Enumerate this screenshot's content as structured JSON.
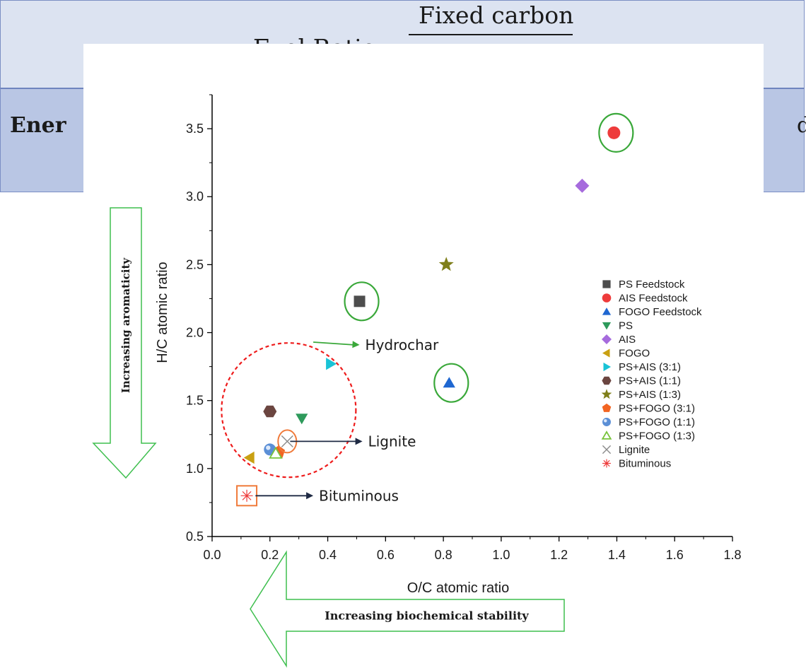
{
  "background": {
    "formula_lhs": "Fuel Ratio =",
    "formula_numerator": "Fixed carbon",
    "row2_left": "Ener",
    "row2_right": "d"
  },
  "chart_data": {
    "type": "scatter",
    "xlabel": "O/C atomic ratio",
    "ylabel": "H/C atomic ratio",
    "xlim": [
      0,
      1.8
    ],
    "ylim": [
      0.5,
      3.75
    ],
    "xticks": [
      "0.0",
      "0.2",
      "0.4",
      "0.6",
      "0.8",
      "1.0",
      "1.2",
      "1.4",
      "1.6",
      "1.8"
    ],
    "yticks": [
      "0.5",
      "1.0",
      "1.5",
      "2.0",
      "2.5",
      "3.0",
      "3.5"
    ],
    "legend_position": "right",
    "series": [
      {
        "name": "PS Feedstock",
        "marker": "square",
        "color": "#4d4d4d",
        "x": 0.51,
        "y": 2.23
      },
      {
        "name": "AIS Feedstock",
        "marker": "circle",
        "color": "#ee3b3b",
        "x": 1.39,
        "y": 3.47
      },
      {
        "name": "FOGO Feedstock",
        "marker": "triangle-up",
        "color": "#1f67d1",
        "x": 0.82,
        "y": 1.63
      },
      {
        "name": "PS",
        "marker": "triangle-down",
        "color": "#2e9a5b",
        "x": 0.31,
        "y": 1.37
      },
      {
        "name": "AIS",
        "marker": "diamond",
        "color": "#a66bdd",
        "x": 1.28,
        "y": 3.08
      },
      {
        "name": "FOGO",
        "marker": "triangle-left",
        "color": "#c9a012",
        "x": 0.13,
        "y": 1.08
      },
      {
        "name": "PS+AIS (3:1)",
        "marker": "triangle-right",
        "color": "#19c3d6",
        "x": 0.41,
        "y": 1.77
      },
      {
        "name": "PS+AIS (1:1)",
        "marker": "hexagon",
        "color": "#6b4540",
        "x": 0.2,
        "y": 1.42
      },
      {
        "name": "PS+AIS (1:3)",
        "marker": "star",
        "color": "#7f7f1a",
        "x": 0.81,
        "y": 2.5
      },
      {
        "name": "PS+FOGO (3:1)",
        "marker": "pentagon",
        "color": "#f26522",
        "x": 0.23,
        "y": 1.12
      },
      {
        "name": "PS+FOGO (1:1)",
        "marker": "sphere",
        "color": "#5b8fd6",
        "x": 0.2,
        "y": 1.14
      },
      {
        "name": "PS+FOGO (1:3)",
        "marker": "triangle-open",
        "color": "#78c33c",
        "x": 0.22,
        "y": 1.11
      },
      {
        "name": "Lignite",
        "marker": "x",
        "color": "#8a8a8a",
        "x": 0.26,
        "y": 1.2
      },
      {
        "name": "Bituminous",
        "marker": "asterisk",
        "color": "#ee3b3b",
        "x": 0.12,
        "y": 0.8
      }
    ],
    "annotations": {
      "hydrochar": {
        "text": "Hydrochar",
        "arrow_from": [
          0.35,
          1.93
        ],
        "arrow_to": [
          0.51,
          1.91
        ]
      },
      "lignite": {
        "text": "Lignite",
        "arrow_from": [
          0.27,
          1.2
        ],
        "arrow_to": [
          0.52,
          1.2
        ]
      },
      "bituminous": {
        "text": "Bituminous",
        "arrow_from": [
          0.15,
          0.8
        ],
        "arrow_to": [
          0.35,
          0.8
        ]
      },
      "circle_color": "#3aa83a",
      "box_color": "#f07a3a",
      "dashed_circle_color": "#ee1c1c"
    },
    "arrows": {
      "vertical_label": "Increasing aromaticity",
      "horizontal_label": "Increasing biochemical stability",
      "color": "#3fbf4f"
    }
  }
}
